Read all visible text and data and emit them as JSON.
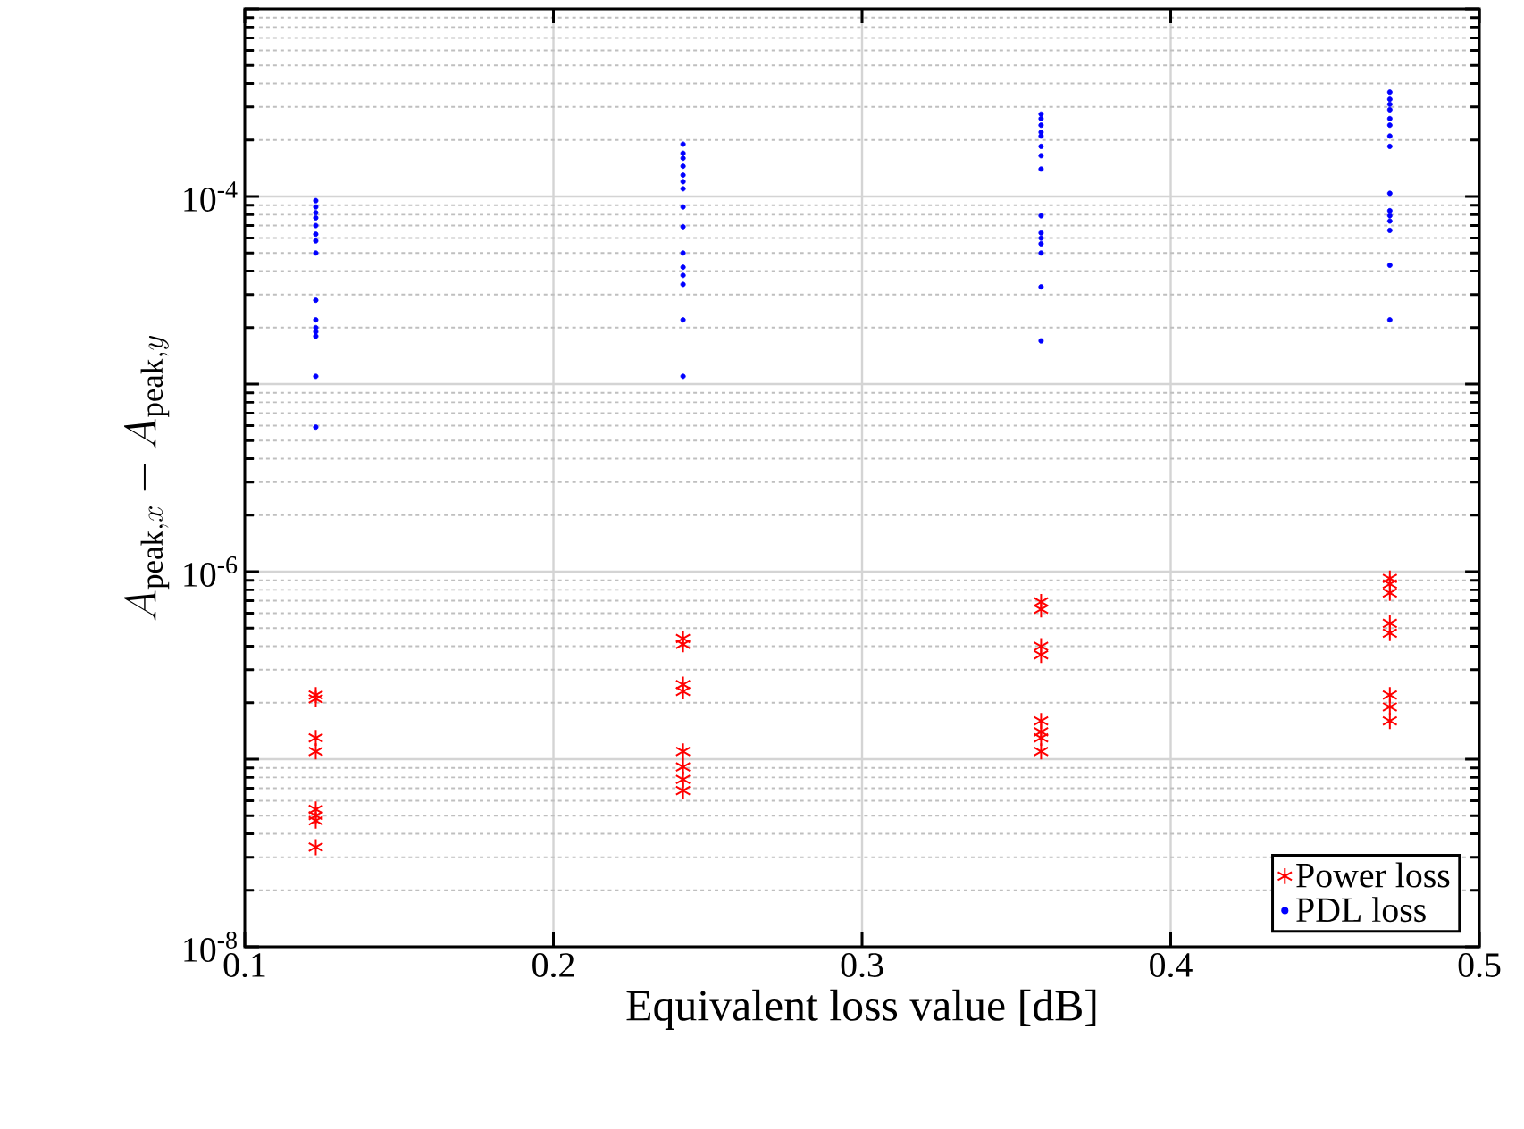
{
  "chart_data": {
    "type": "scatter",
    "xlabel": "Equivalent loss value [dB]",
    "ylabel": "A_{\\mathrm{peak},x} - A_{\\mathrm{peak},y}",
    "xlim": [
      0.1,
      0.5
    ],
    "xticks": [
      0.1,
      0.2,
      0.3,
      0.4,
      0.5
    ],
    "ylim": [
      1e-08,
      0.001
    ],
    "yticks": [
      {
        "value": 1e-08,
        "label": "10$^{-8}$"
      },
      {
        "value": 1e-07,
        "label": null
      },
      {
        "value": 1e-06,
        "label": "10$^{-6}$"
      },
      {
        "value": 1e-05,
        "label": null
      },
      {
        "value": 0.0001,
        "label": "10$^{-4}$"
      },
      {
        "value": 0.001,
        "label": null
      }
    ],
    "log": "y",
    "grid": true,
    "legend": "bottom right",
    "series": [
      {
        "name": "Power loss",
        "color": "#ff0000",
        "marker": "cross",
        "x": [
          0.123,
          0.123,
          0.123,
          0.123,
          0.123,
          0.123,
          0.123,
          0.123,
          0.242,
          0.242,
          0.242,
          0.242,
          0.242,
          0.242,
          0.242,
          0.242,
          0.358,
          0.358,
          0.358,
          0.358,
          0.358,
          0.358,
          0.358,
          0.358,
          0.471,
          0.471,
          0.471,
          0.471,
          0.471,
          0.471,
          0.471,
          0.471
        ],
        "values": [
          2.2e-07,
          2.1e-07,
          1.3e-07,
          1.1e-07,
          5.4e-08,
          5e-08,
          4.7e-08,
          3.4e-08,
          4.4e-07,
          4.1e-07,
          2.5e-07,
          2.3e-07,
          1.1e-07,
          9.1e-08,
          7.8e-08,
          6.8e-08,
          6.9e-07,
          6.3e-07,
          4e-07,
          3.6e-07,
          1.6e-07,
          1.4e-07,
          1.3e-07,
          1.1e-07,
          9.2e-07,
          8.6e-07,
          7.7e-07,
          5.3e-07,
          4.7e-07,
          2.2e-07,
          1.9e-07,
          1.6e-07
        ]
      },
      {
        "name": "PDL loss",
        "color": "#0000ff",
        "marker": "circle",
        "x": [
          0.123,
          0.123,
          0.123,
          0.123,
          0.123,
          0.123,
          0.123,
          0.123,
          0.123,
          0.123,
          0.123,
          0.123,
          0.123,
          0.123,
          0.123,
          0.242,
          0.242,
          0.242,
          0.242,
          0.242,
          0.242,
          0.242,
          0.242,
          0.242,
          0.242,
          0.242,
          0.242,
          0.242,
          0.242,
          0.242,
          0.358,
          0.358,
          0.358,
          0.358,
          0.358,
          0.358,
          0.358,
          0.358,
          0.358,
          0.358,
          0.358,
          0.358,
          0.358,
          0.358,
          0.358,
          0.471,
          0.471,
          0.471,
          0.471,
          0.471,
          0.471,
          0.471,
          0.471,
          0.471,
          0.471,
          0.471,
          0.471,
          0.471,
          0.471,
          0.471
        ],
        "values": [
          9.5e-05,
          8.8e-05,
          8.2e-05,
          7.7e-05,
          7e-05,
          6.3e-05,
          5.8e-05,
          5e-05,
          2.8e-05,
          2.2e-05,
          2e-05,
          1.9e-05,
          1.8e-05,
          1.1e-05,
          5.9e-06,
          0.00019,
          0.00017,
          0.00016,
          0.000145,
          0.00013,
          0.00012,
          0.00011,
          8.8e-05,
          6.9e-05,
          5e-05,
          4.2e-05,
          3.8e-05,
          3.4e-05,
          2.2e-05,
          1.1e-05,
          0.000275,
          0.00026,
          0.00024,
          0.00022,
          0.00021,
          0.000185,
          0.000165,
          0.00014,
          7.9e-05,
          6.4e-05,
          6e-05,
          5.6e-05,
          5e-05,
          3.3e-05,
          1.7e-05,
          0.00036,
          0.00033,
          0.00031,
          0.00029,
          0.00026,
          0.00024,
          0.00021,
          0.000185,
          0.000104,
          8.4e-05,
          7.9e-05,
          7.4e-05,
          6.6e-05,
          4.3e-05,
          2.2e-05
        ]
      }
    ]
  }
}
